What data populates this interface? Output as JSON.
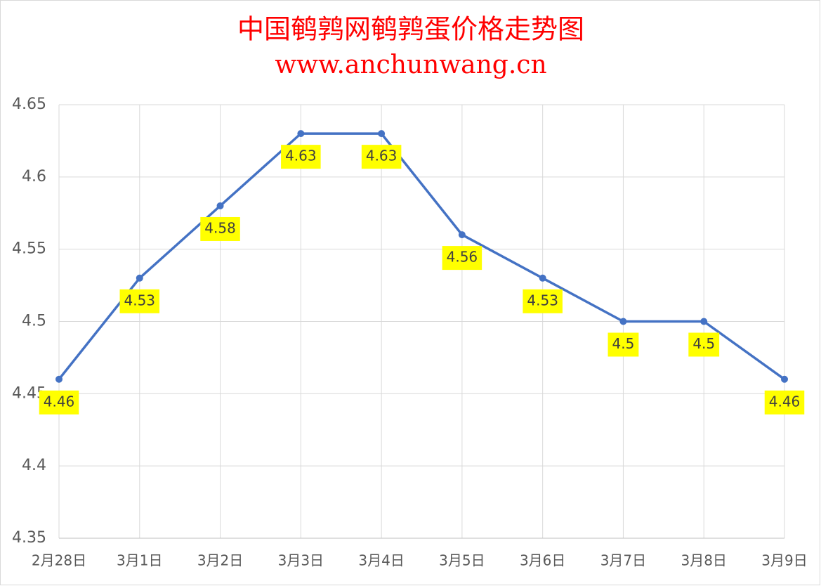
{
  "chart_data": {
    "type": "line",
    "title": "中国鹌鹑网鹌鹑蛋价格走势图",
    "subtitle": "www.anchunwang.cn",
    "categories": [
      "2月28日",
      "3月1日",
      "3月2日",
      "3月3日",
      "3月4日",
      "3月5日",
      "3月6日",
      "3月7日",
      "3月8日",
      "3月9日"
    ],
    "series": [
      {
        "color": "#4472c4",
        "values": [
          4.46,
          4.53,
          4.58,
          4.63,
          4.63,
          4.56,
          4.53,
          4.5,
          4.5,
          4.46
        ]
      }
    ],
    "ylim": [
      4.35,
      4.65
    ],
    "yticks": [
      4.35,
      4.4,
      4.45,
      4.5,
      4.55,
      4.6,
      4.65
    ],
    "grid": true,
    "label_background": "#ffff00"
  }
}
